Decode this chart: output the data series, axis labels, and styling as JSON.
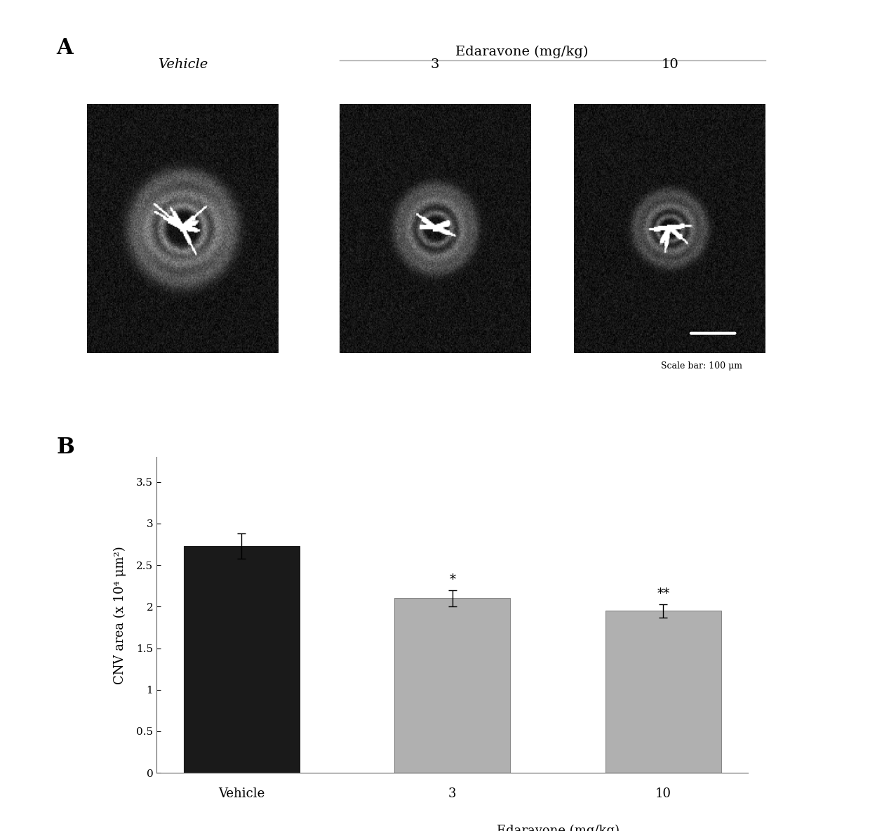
{
  "panel_a_label": "A",
  "panel_b_label": "B",
  "edaravone_label": "Edaravone (mg/kg)",
  "vehicle_label": "Vehicle",
  "dose_labels": [
    "3",
    "10"
  ],
  "scale_bar_text": "Scale bar: 100 μm",
  "bar_categories": [
    "Vehicle",
    "3",
    "10"
  ],
  "bar_values": [
    2.73,
    2.1,
    1.95
  ],
  "bar_errors": [
    0.15,
    0.1,
    0.08
  ],
  "bar_colors": [
    "#1a1a1a",
    "#b0b0b0",
    "#b0b0b0"
  ],
  "bar_edge_colors": [
    "#1a1a1a",
    "#888888",
    "#888888"
  ],
  "ylabel": "CNV area (x 10⁴ μm²)",
  "xlabel": "Edaravone (mg/kg)",
  "yticks": [
    0,
    0.5,
    1.0,
    1.5,
    2.0,
    2.5,
    3.0,
    3.5
  ],
  "ylim": [
    0,
    3.8
  ],
  "significance_labels": [
    "",
    "*",
    "**"
  ],
  "background_color": "#ffffff",
  "figure_bg": "#ffffff",
  "img_noise_seed": 42
}
